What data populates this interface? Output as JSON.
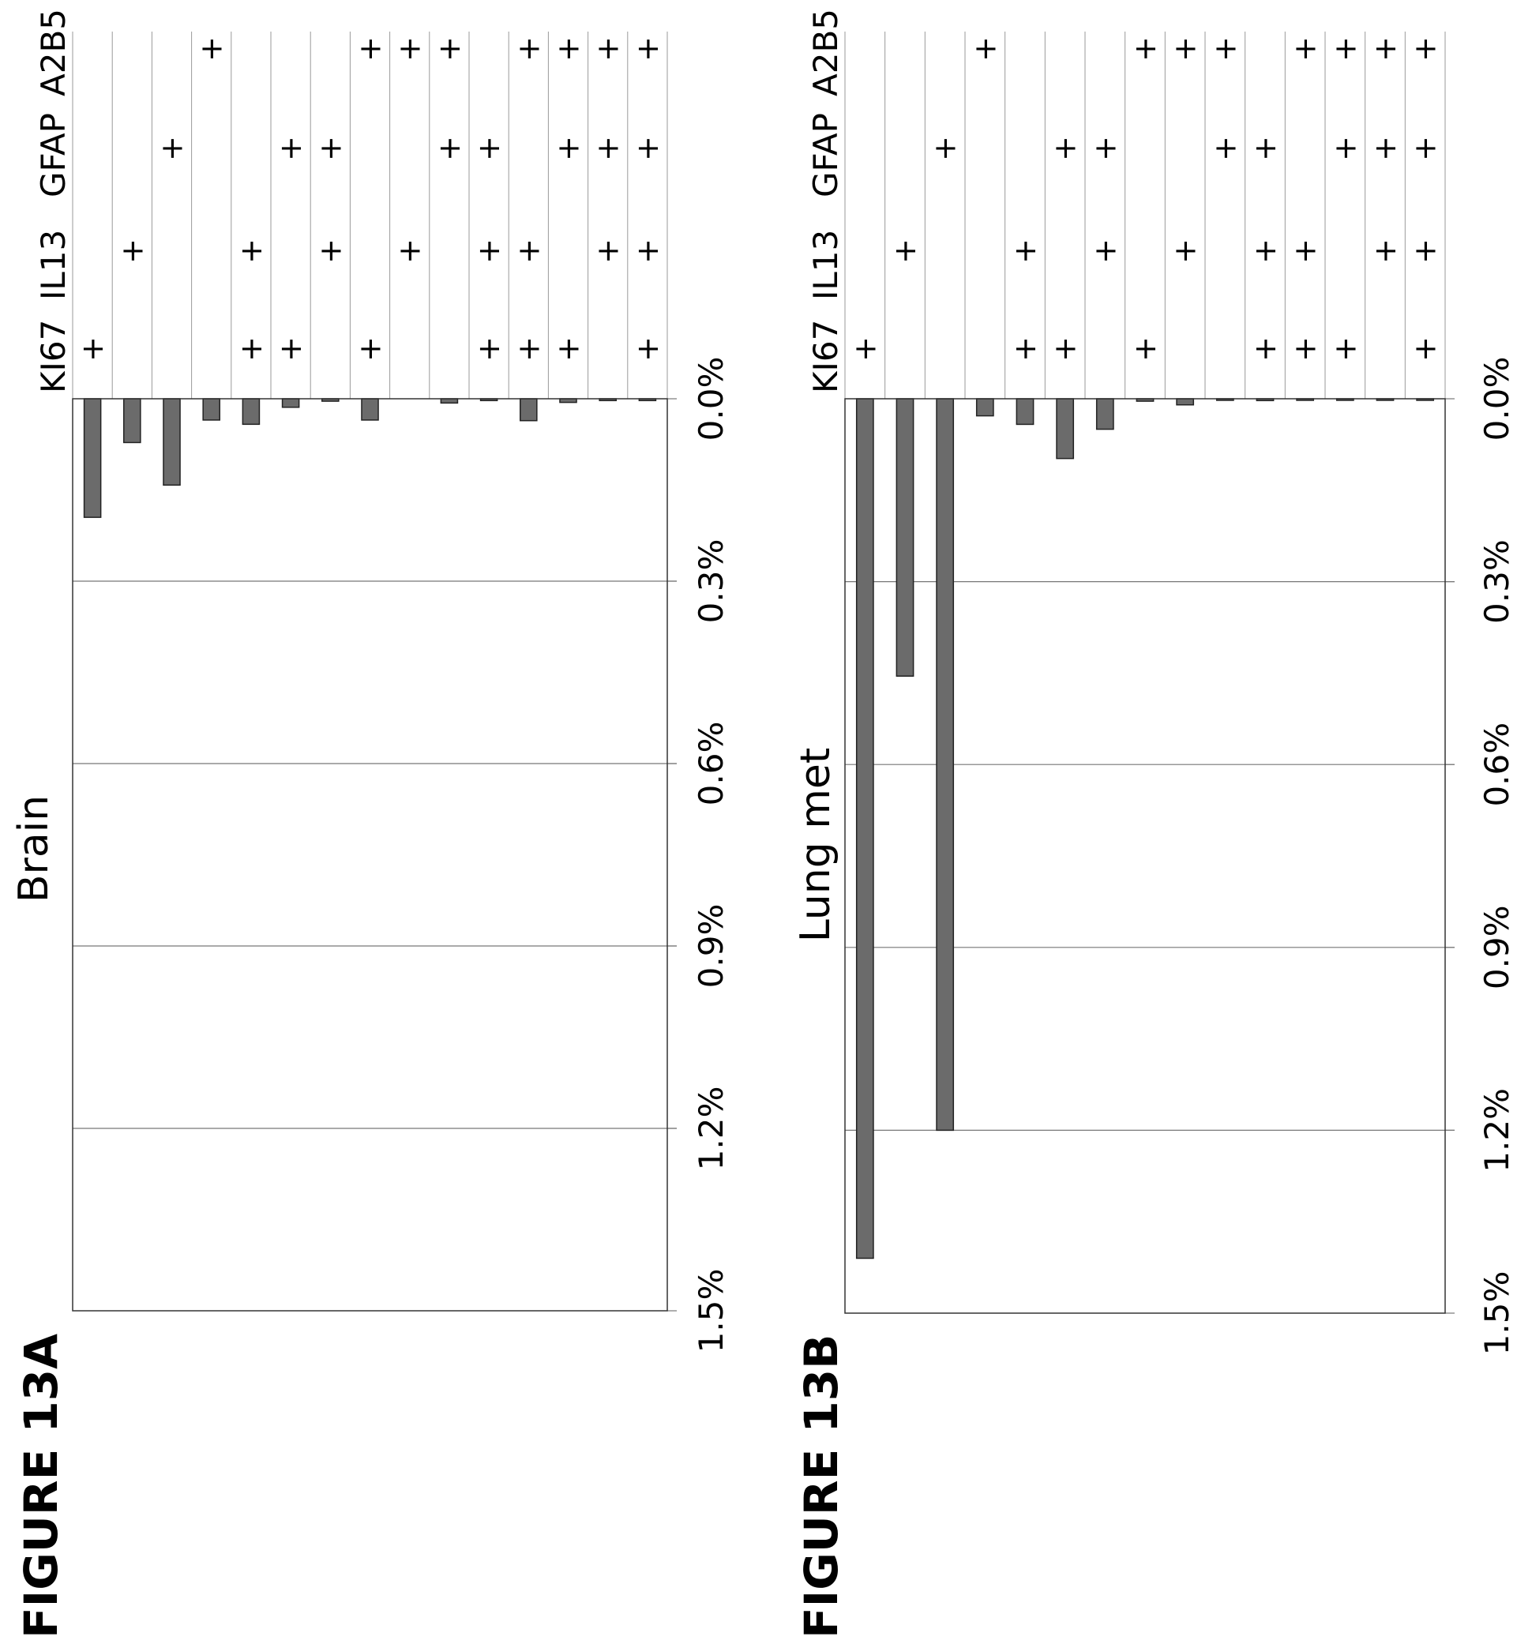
{
  "chart_data": [
    {
      "type": "bar",
      "orientation": "horizontal",
      "figure_label": "FIGURE 13A",
      "title": "Brain",
      "marker_headers": [
        "KI67",
        "IL13",
        "GFAP",
        "A2B5"
      ],
      "marker_symbol": "+",
      "x_ticks": [
        "0.0%",
        "0.3%",
        "0.6%",
        "0.9%",
        "1.2%",
        "1.5%"
      ],
      "xlim": [
        0,
        1.5
      ],
      "grid": true,
      "rows": [
        {
          "markers": [
            true,
            false,
            false,
            false
          ],
          "value": 0.195
        },
        {
          "markers": [
            false,
            true,
            false,
            false
          ],
          "value": 0.072
        },
        {
          "markers": [
            false,
            false,
            true,
            false
          ],
          "value": 0.142
        },
        {
          "markers": [
            false,
            false,
            false,
            true
          ],
          "value": 0.035
        },
        {
          "markers": [
            true,
            true,
            false,
            false
          ],
          "value": 0.042
        },
        {
          "markers": [
            true,
            false,
            true,
            false
          ],
          "value": 0.014
        },
        {
          "markers": [
            false,
            true,
            true,
            false
          ],
          "value": 0.004
        },
        {
          "markers": [
            true,
            false,
            false,
            true
          ],
          "value": 0.035
        },
        {
          "markers": [
            false,
            true,
            false,
            true
          ],
          "value": 0.0
        },
        {
          "markers": [
            false,
            false,
            true,
            true
          ],
          "value": 0.007
        },
        {
          "markers": [
            true,
            true,
            true,
            false
          ],
          "value": 0.003
        },
        {
          "markers": [
            true,
            true,
            false,
            true
          ],
          "value": 0.036
        },
        {
          "markers": [
            true,
            false,
            true,
            true
          ],
          "value": 0.006
        },
        {
          "markers": [
            false,
            true,
            true,
            true
          ],
          "value": 0.003
        },
        {
          "markers": [
            true,
            true,
            true,
            true
          ],
          "value": 0.003
        }
      ]
    },
    {
      "type": "bar",
      "orientation": "horizontal",
      "figure_label": "FIGURE 13B",
      "title": "Lung met",
      "marker_headers": [
        "KI67",
        "IL13",
        "GFAP",
        "A2B5"
      ],
      "marker_symbol": "+",
      "x_ticks": [
        "0.0%",
        "0.3%",
        "0.6%",
        "0.9%",
        "1.2%",
        "1.5%"
      ],
      "xlim": [
        0,
        1.5
      ],
      "grid": true,
      "rows": [
        {
          "markers": [
            true,
            false,
            false,
            false
          ],
          "value": 1.41
        },
        {
          "markers": [
            false,
            true,
            false,
            false
          ],
          "value": 0.455
        },
        {
          "markers": [
            false,
            false,
            true,
            false
          ],
          "value": 1.2
        },
        {
          "markers": [
            false,
            false,
            false,
            true
          ],
          "value": 0.028
        },
        {
          "markers": [
            true,
            true,
            false,
            false
          ],
          "value": 0.042
        },
        {
          "markers": [
            true,
            false,
            true,
            false
          ],
          "value": 0.098
        },
        {
          "markers": [
            false,
            true,
            true,
            false
          ],
          "value": 0.05
        },
        {
          "markers": [
            true,
            false,
            false,
            true
          ],
          "value": 0.004
        },
        {
          "markers": [
            false,
            true,
            false,
            true
          ],
          "value": 0.01
        },
        {
          "markers": [
            false,
            false,
            true,
            true
          ],
          "value": 0.002
        },
        {
          "markers": [
            true,
            true,
            true,
            false
          ],
          "value": 0.003
        },
        {
          "markers": [
            true,
            true,
            false,
            true
          ],
          "value": 0.002
        },
        {
          "markers": [
            true,
            false,
            true,
            true
          ],
          "value": 0.001
        },
        {
          "markers": [
            false,
            true,
            true,
            true
          ],
          "value": 0.001
        },
        {
          "markers": [
            true,
            true,
            true,
            true
          ],
          "value": 0.001
        }
      ]
    }
  ]
}
